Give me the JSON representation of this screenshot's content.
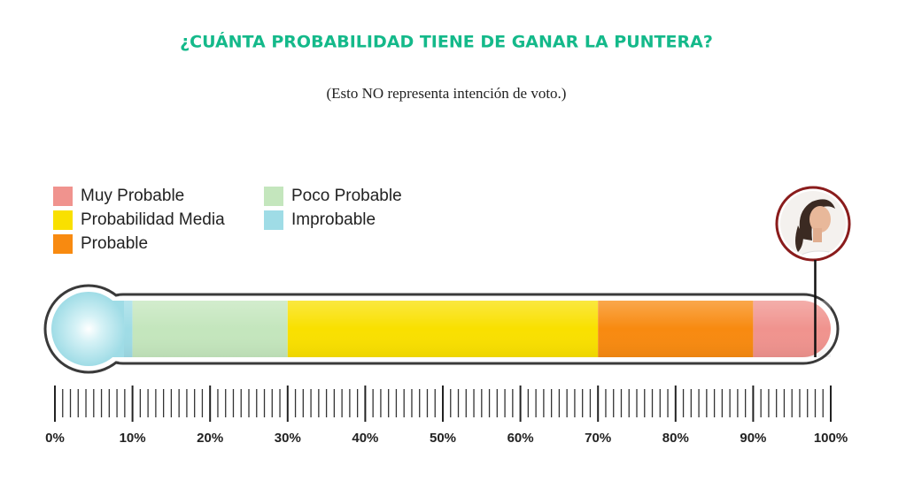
{
  "chart_data": {
    "type": "gauge",
    "title": "¿CUÁNTA PROBABILIDAD TIENE DE GANAR LA PUNTERA?",
    "subtitle": "(Esto NO representa intención de voto.)",
    "legend_order": [
      4,
      2,
      3,
      1,
      0
    ],
    "series": [
      {
        "name": "Improbable",
        "color": "#9fdce6",
        "range": [
          0,
          10
        ]
      },
      {
        "name": "Poco Probable",
        "color": "#c4e6bd",
        "range": [
          10,
          30
        ]
      },
      {
        "name": "Probabilidad Media",
        "color": "#f9e000",
        "range": [
          30,
          70
        ]
      },
      {
        "name": "Probable",
        "color": "#f88a10",
        "range": [
          70,
          90
        ]
      },
      {
        "name": "Muy Probable",
        "color": "#f0938e",
        "range": [
          90,
          100
        ]
      }
    ],
    "marker": 98,
    "xlim": [
      0,
      100
    ],
    "xticks": [
      {
        "value": 0,
        "label": "0%"
      },
      {
        "value": 10,
        "label": "10%"
      },
      {
        "value": 20,
        "label": "20%"
      },
      {
        "value": 30,
        "label": "30%"
      },
      {
        "value": 40,
        "label": "40%"
      },
      {
        "value": 50,
        "label": "50%"
      },
      {
        "value": 60,
        "label": "60%"
      },
      {
        "value": 70,
        "label": "70%"
      },
      {
        "value": 80,
        "label": "80%"
      },
      {
        "value": 90,
        "label": "90%"
      },
      {
        "value": 100,
        "label": "100%"
      }
    ],
    "minor_xticks": [
      1,
      2,
      3,
      4,
      5,
      6,
      7,
      8,
      9,
      11,
      12,
      13,
      14,
      15,
      16,
      17,
      18,
      19,
      21,
      22,
      23,
      24,
      25,
      26,
      27,
      28,
      29,
      31,
      32,
      33,
      34,
      35,
      36,
      37,
      38,
      39,
      41,
      42,
      43,
      44,
      45,
      46,
      47,
      48,
      49,
      51,
      52,
      53,
      54,
      55,
      56,
      57,
      58,
      59,
      61,
      62,
      63,
      64,
      65,
      66,
      67,
      68,
      69,
      71,
      72,
      73,
      74,
      75,
      76,
      77,
      78,
      79,
      81,
      82,
      83,
      84,
      85,
      86,
      87,
      88,
      89,
      91,
      92,
      93,
      94,
      95,
      96,
      97,
      98,
      99
    ]
  }
}
